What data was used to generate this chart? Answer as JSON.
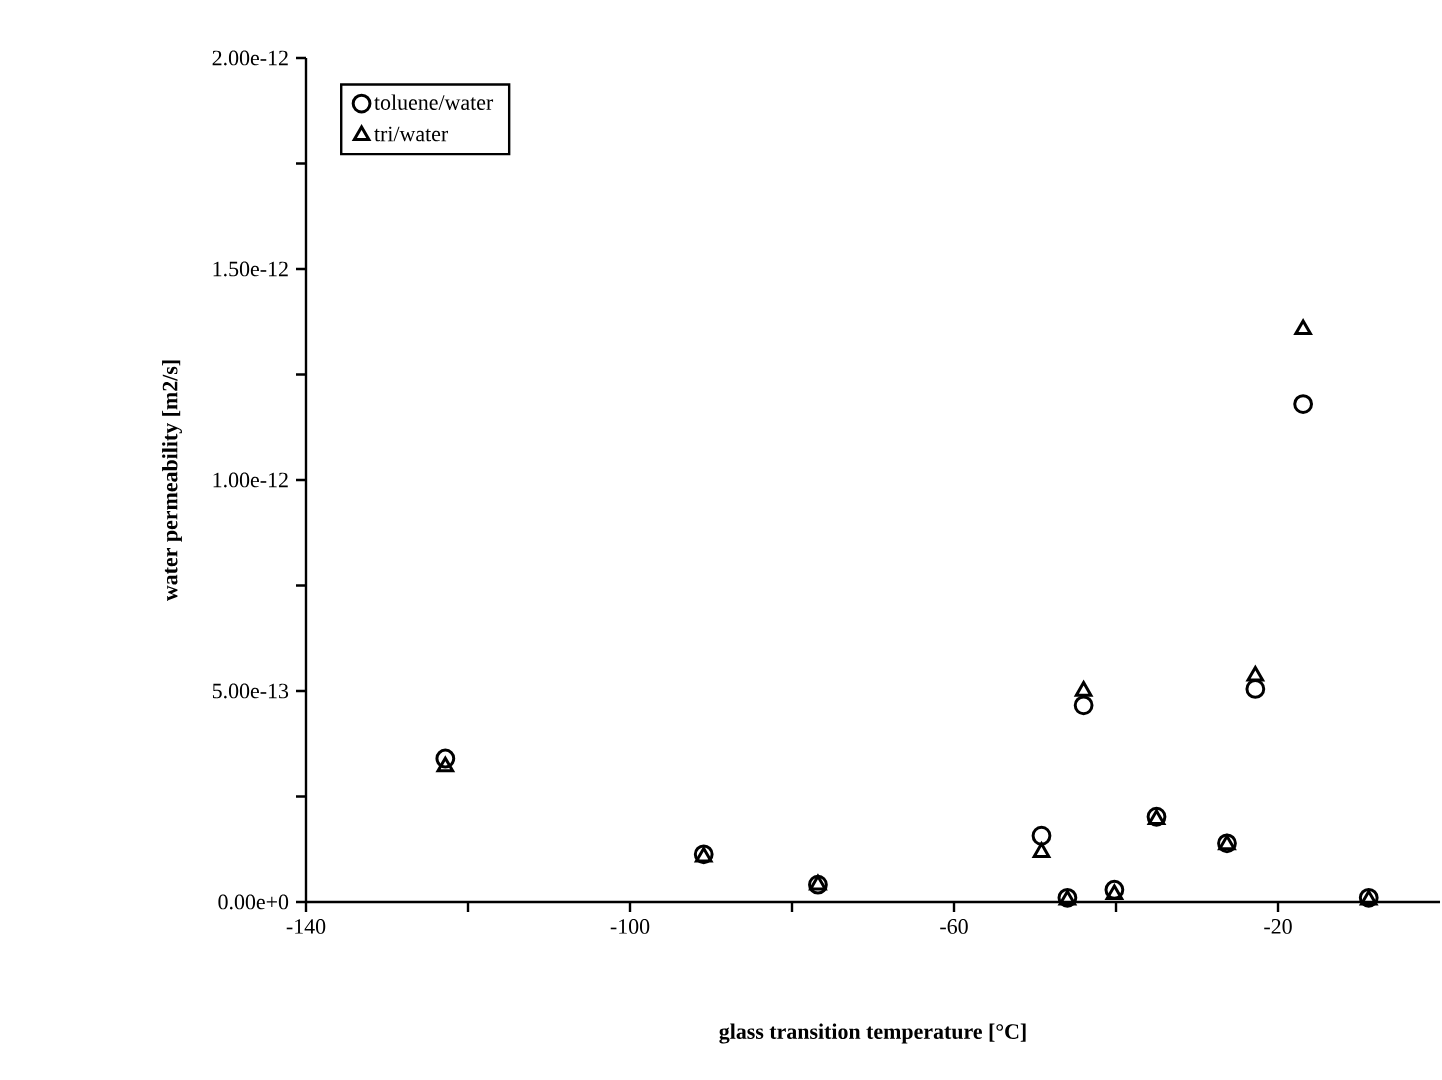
{
  "chart_data": {
    "type": "scatter",
    "xlabel": "glass transition temperature [°C]",
    "ylabel": "water permeability [m2/s]",
    "xlim": [
      -140,
      0
    ],
    "xticks": [
      -140,
      {
        "value": -120,
        "label": null
      },
      -100,
      {
        "value": -80,
        "label": null
      },
      -60,
      {
        "value": -40,
        "label": null
      },
      -20
    ],
    "ylim": [
      0,
      2e-12
    ],
    "yticks": [
      {
        "value": 0,
        "label": "0.00e+0"
      },
      {
        "value": 2.5e-13,
        "label": null
      },
      {
        "value": 5e-13,
        "label": "5.00e-13"
      },
      {
        "value": 7.5e-13,
        "label": null
      },
      {
        "value": 1e-12,
        "label": "1.00e-12"
      },
      {
        "value": 1.25e-12,
        "label": null
      },
      {
        "value": 1.5e-12,
        "label": "1.50e-12"
      },
      {
        "value": 1.75e-12,
        "label": null
      },
      {
        "value": 2e-12,
        "label": "2.00e-12"
      }
    ],
    "grid": false,
    "legend": "top left",
    "x": [
      -122.8,
      -90.9,
      -76.8,
      -49.2,
      -46.0,
      -44.0,
      -40.2,
      -35.0,
      -26.3,
      -22.8,
      -16.9,
      -8.8
    ],
    "series": [
      {
        "name": "toluene/water",
        "color": "#000000",
        "marker": "circle",
        "values": [
          3.4e-13,
          1.13e-13,
          4.1e-14,
          1.57e-13,
          1e-14,
          4.66e-13,
          2.9e-14,
          2.02e-13,
          1.39e-13,
          5.05e-13,
          1.18e-12,
          1e-14
        ]
      },
      {
        "name": "tri/water",
        "color": "#000000",
        "marker": "triangle",
        "values": [
          3.21e-13,
          1.07e-13,
          4.1e-14,
          1.18e-13,
          5e-15,
          5e-13,
          1.8e-14,
          1.96e-13,
          1.36e-13,
          5.36e-13,
          1.357e-12,
          5e-15
        ]
      }
    ]
  }
}
